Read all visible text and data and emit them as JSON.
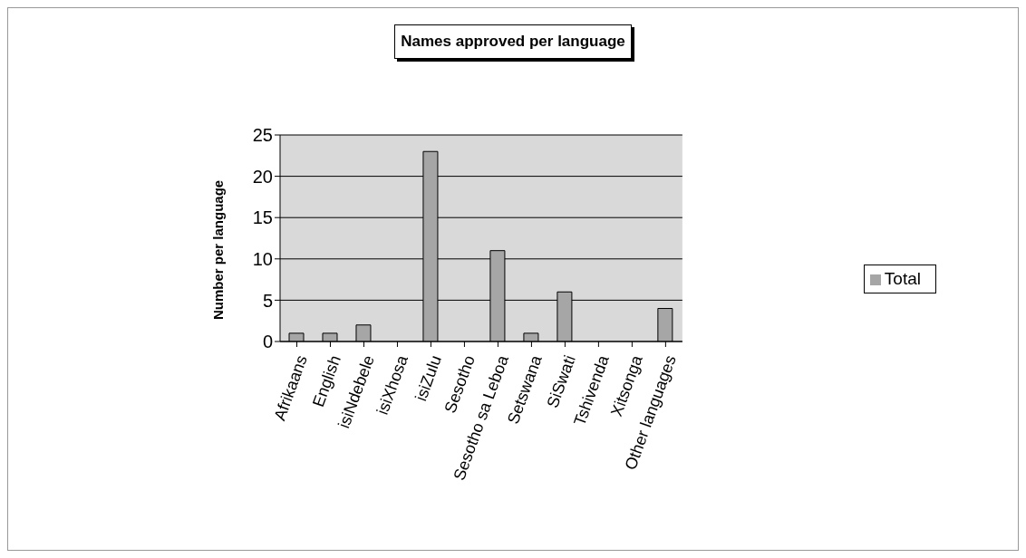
{
  "chart_data": {
    "type": "bar",
    "title": "Names approved per language",
    "ylabel": "Number per language",
    "categories": [
      "Afrikaans",
      "English",
      "isiNdebele",
      "isiXhosa",
      "isiZulu",
      "Sesotho",
      "Sesotho sa Leboa",
      "Setswana",
      "SiSwati",
      "Tshivenda",
      "Xitsonga",
      "Other languages"
    ],
    "series": [
      {
        "name": "Total",
        "color": "#a6a6a6",
        "values": [
          1,
          1,
          2,
          0,
          23,
          0,
          11,
          1,
          6,
          0,
          0,
          4
        ]
      }
    ],
    "ylim": [
      0,
      25
    ],
    "yticks": [
      0,
      5,
      10,
      15,
      20,
      25
    ],
    "grid": "y",
    "legend": "right"
  }
}
